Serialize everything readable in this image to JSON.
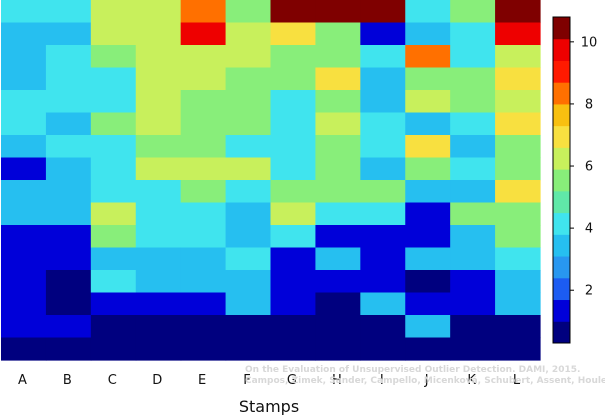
{
  "chart_data": {
    "type": "heatmap",
    "xlabel": "Stamps",
    "ylabel": "",
    "categories": [
      "A",
      "B",
      "C",
      "D",
      "E",
      "F",
      "G",
      "H",
      "I",
      "J",
      "K",
      "L"
    ],
    "colorbar": {
      "min": 0.3,
      "max": 10.8,
      "ticks": [
        2,
        4,
        6,
        8,
        10
      ],
      "tick_labels": [
        "2",
        "4",
        "6",
        "8",
        "10"
      ],
      "palette": [
        "#00007f",
        "#0000d9",
        "#1c5cf2",
        "#2897f0",
        "#26bff0",
        "#40e4ee",
        "#60e8a8",
        "#88ee7a",
        "#c8f05c",
        "#f8e040",
        "#f8c010",
        "#ff7000",
        "#ff1a00",
        "#ee0000",
        "#7f0000"
      ]
    },
    "matrix": [
      [
        4.3,
        4.3,
        5.9,
        5.9,
        8.3,
        5.3,
        10.8,
        10.8,
        10.8,
        4.3,
        5.3,
        10.8
      ],
      [
        3.3,
        3.3,
        5.9,
        5.9,
        9.8,
        5.9,
        7.2,
        5.3,
        1.6,
        3.3,
        4.3,
        10.0
      ],
      [
        3.3,
        4.3,
        5.3,
        6.2,
        6.2,
        5.9,
        5.3,
        5.3,
        4.3,
        8.3,
        4.3,
        6.2
      ],
      [
        3.3,
        4.3,
        4.3,
        6.2,
        6.2,
        5.3,
        5.3,
        7.2,
        3.3,
        5.3,
        5.3,
        7.2
      ],
      [
        4.3,
        4.3,
        4.3,
        6.2,
        5.3,
        5.3,
        4.3,
        5.3,
        3.3,
        6.2,
        5.3,
        6.2
      ],
      [
        4.3,
        3.3,
        5.3,
        6.2,
        5.3,
        5.3,
        4.3,
        6.2,
        4.3,
        3.3,
        4.3,
        7.2
      ],
      [
        3.3,
        4.3,
        4.3,
        5.3,
        5.3,
        4.3,
        4.3,
        5.3,
        4.3,
        7.2,
        3.3,
        5.3
      ],
      [
        1.6,
        3.3,
        4.3,
        5.9,
        5.9,
        5.9,
        4.3,
        5.3,
        3.3,
        5.3,
        4.3,
        5.3
      ],
      [
        3.3,
        3.3,
        4.3,
        4.3,
        5.3,
        4.3,
        5.3,
        5.3,
        5.3,
        3.3,
        3.3,
        7.2
      ],
      [
        3.3,
        3.3,
        6.2,
        4.3,
        4.3,
        3.3,
        6.2,
        4.3,
        4.3,
        1.6,
        5.3,
        5.3
      ],
      [
        1.6,
        1.6,
        5.3,
        4.3,
        4.3,
        3.3,
        4.3,
        1.6,
        1.6,
        1.6,
        3.3,
        5.3
      ],
      [
        1.6,
        1.6,
        3.3,
        3.3,
        3.3,
        4.3,
        1.6,
        3.3,
        1.6,
        3.3,
        3.3,
        4.3
      ],
      [
        1.6,
        0.5,
        4.3,
        3.3,
        3.3,
        3.3,
        1.6,
        1.6,
        1.6,
        0.5,
        1.6,
        3.3
      ],
      [
        1.6,
        0.5,
        1.6,
        1.6,
        1.6,
        3.3,
        1.6,
        0.5,
        3.3,
        1.6,
        1.6,
        3.3
      ],
      [
        1.6,
        1.6,
        0.5,
        0.5,
        0.5,
        0.5,
        0.5,
        0.5,
        0.5,
        3.3,
        0.5,
        0.5
      ],
      [
        0.5,
        0.5,
        0.5,
        0.5,
        0.5,
        0.5,
        0.5,
        0.5,
        0.5,
        0.5,
        0.5,
        0.5
      ]
    ],
    "legend": "colorbar right",
    "grid": false
  },
  "credit": {
    "line1": "On the Evaluation of Unsupervised Outlier Detection. DAMI, 2015.",
    "line2": "Campos, Zimek, Sander, Campello, Micenková, Schubert, Assent, Houle"
  }
}
